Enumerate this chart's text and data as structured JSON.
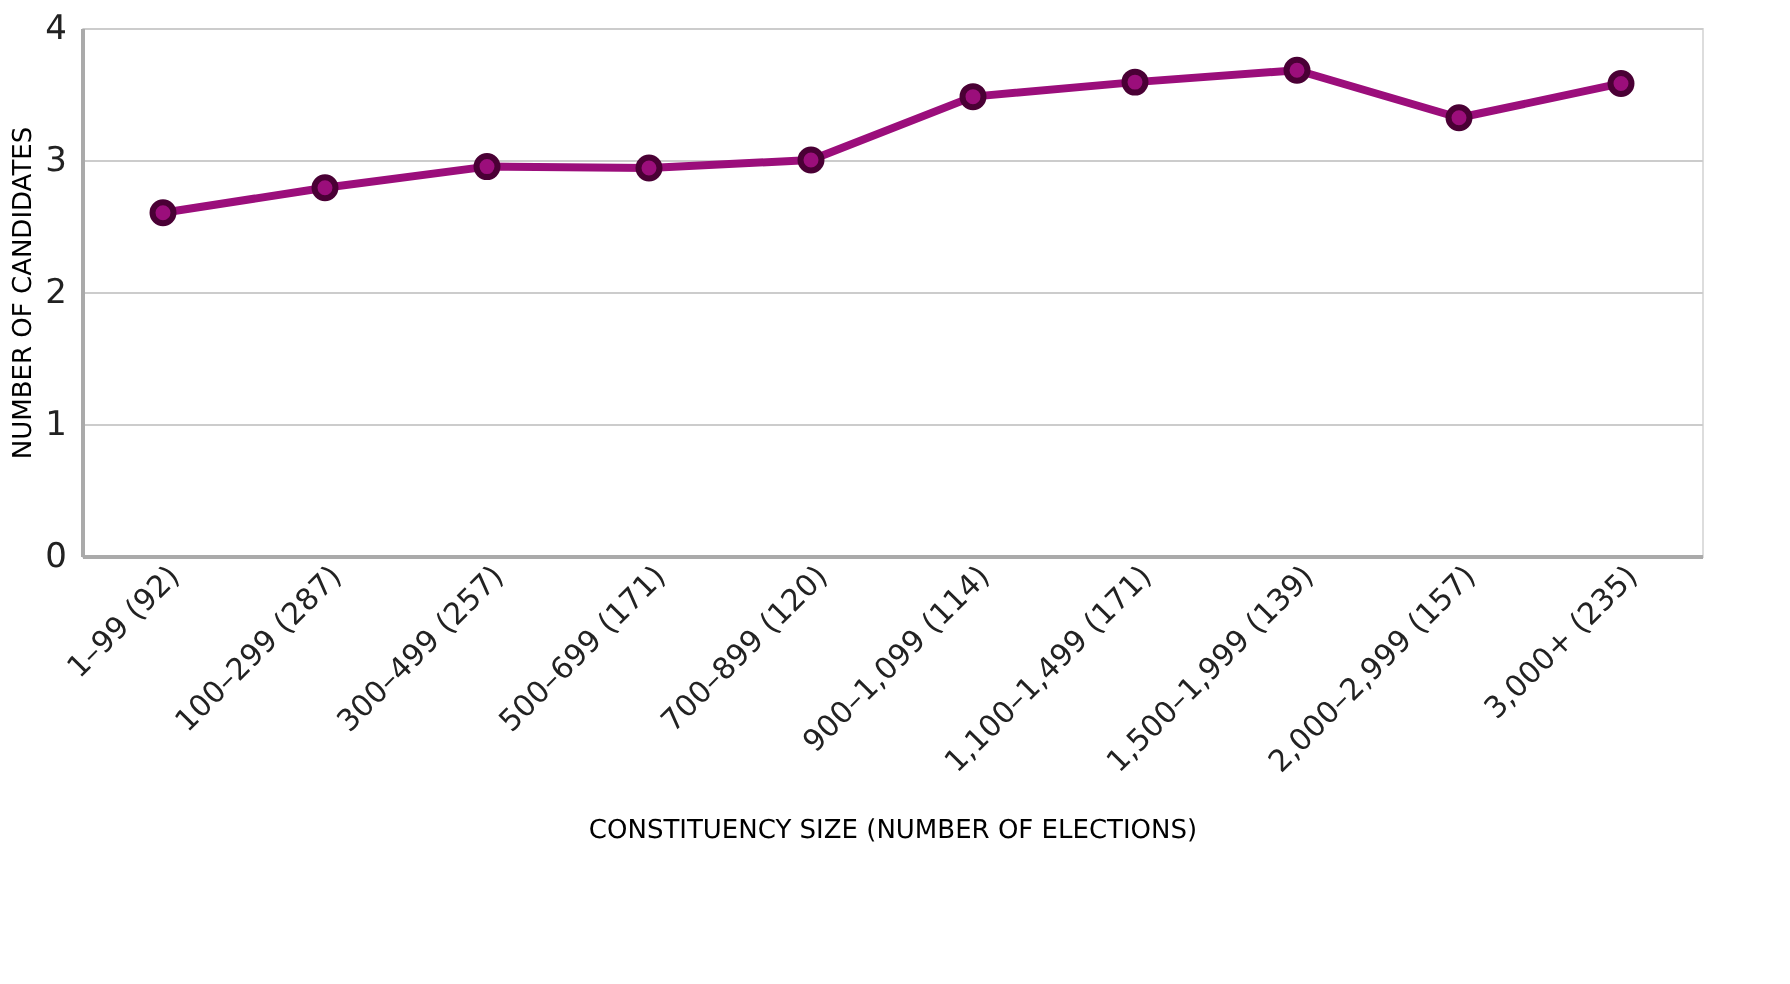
{
  "chart_data": {
    "type": "line",
    "categories": [
      "1–99 (92)",
      "100–299 (287)",
      "300–499 (257)",
      "500–699 (171)",
      "700–899 (120)",
      "900–1,099 (114)",
      "1,100–1,499 (171)",
      "1,500–1,999 (139)",
      "2,000–2,999 (157)",
      "3,000+ (235)"
    ],
    "series": [
      {
        "color": "#9b0e7b",
        "values": [
          2.6,
          2.79,
          2.95,
          2.94,
          3.0,
          3.48,
          3.59,
          3.68,
          3.32,
          3.58
        ]
      }
    ],
    "xlabel": "CONSTITUENCY SIZE (NUMBER OF ELECTIONS)",
    "ylabel": "NUMBER OF CANDIDATES",
    "ylim": [
      0,
      4
    ],
    "yticks": [
      0,
      1,
      2,
      3,
      4
    ],
    "grid": "y",
    "marker": "circle",
    "line_style": "solid"
  }
}
